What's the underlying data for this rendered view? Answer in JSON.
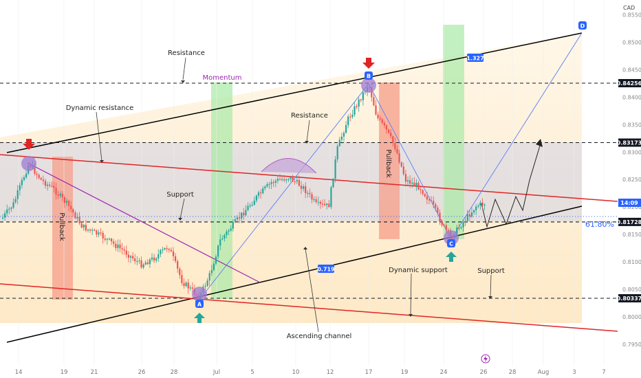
{
  "chart_data": {
    "type": "candlestick",
    "currency": "CAD",
    "x_ticks": [
      "14",
      "19",
      "21",
      "26",
      "28",
      "Jul",
      "5",
      "10",
      "12",
      "17",
      "19",
      "24",
      "26",
      "28",
      "Aug",
      "3",
      "7"
    ],
    "y_ticks": [
      "0.85500",
      "0.85000",
      "0.84500",
      "0.84000",
      "0.83500",
      "0.83000",
      "0.82500",
      "0.82000",
      "0.81500",
      "0.81000",
      "0.80500",
      "0.80000",
      "0.79500"
    ],
    "price_levels": [
      {
        "label": "0.84256",
        "value": 0.84256,
        "color": "#131722"
      },
      {
        "label": "0.83173",
        "value": 0.83173,
        "color": "#131722"
      },
      {
        "label": "0.81728",
        "value": 0.81728,
        "color": "#131722"
      },
      {
        "label": "0.80337",
        "value": 0.80337,
        "color": "#131722"
      }
    ],
    "current_price_label": "14:09",
    "fib_label": "61.80%",
    "projection_labels": {
      "up": "1.327",
      "down": "0.719"
    },
    "pivots": [
      "A",
      "B",
      "C",
      "D"
    ],
    "annotations": {
      "resistance_top": "Resistance",
      "momentum": "Momentum",
      "dynamic_resistance": "Dynamic resistance",
      "resistance_mid": "Resistance",
      "support_mid": "Support",
      "pullback_left": "Pullback",
      "pullback_right": "Pullback",
      "dynamic_support": "Dynamic support",
      "support_right": "Support",
      "ascending_channel": "Ascending channel"
    },
    "colors": {
      "up": "#26a69a",
      "down": "#ef5350",
      "channel": "#000000",
      "trend_red": "#e02424",
      "purple": "#9c27b0",
      "fib_blue": "#2962ff"
    }
  }
}
